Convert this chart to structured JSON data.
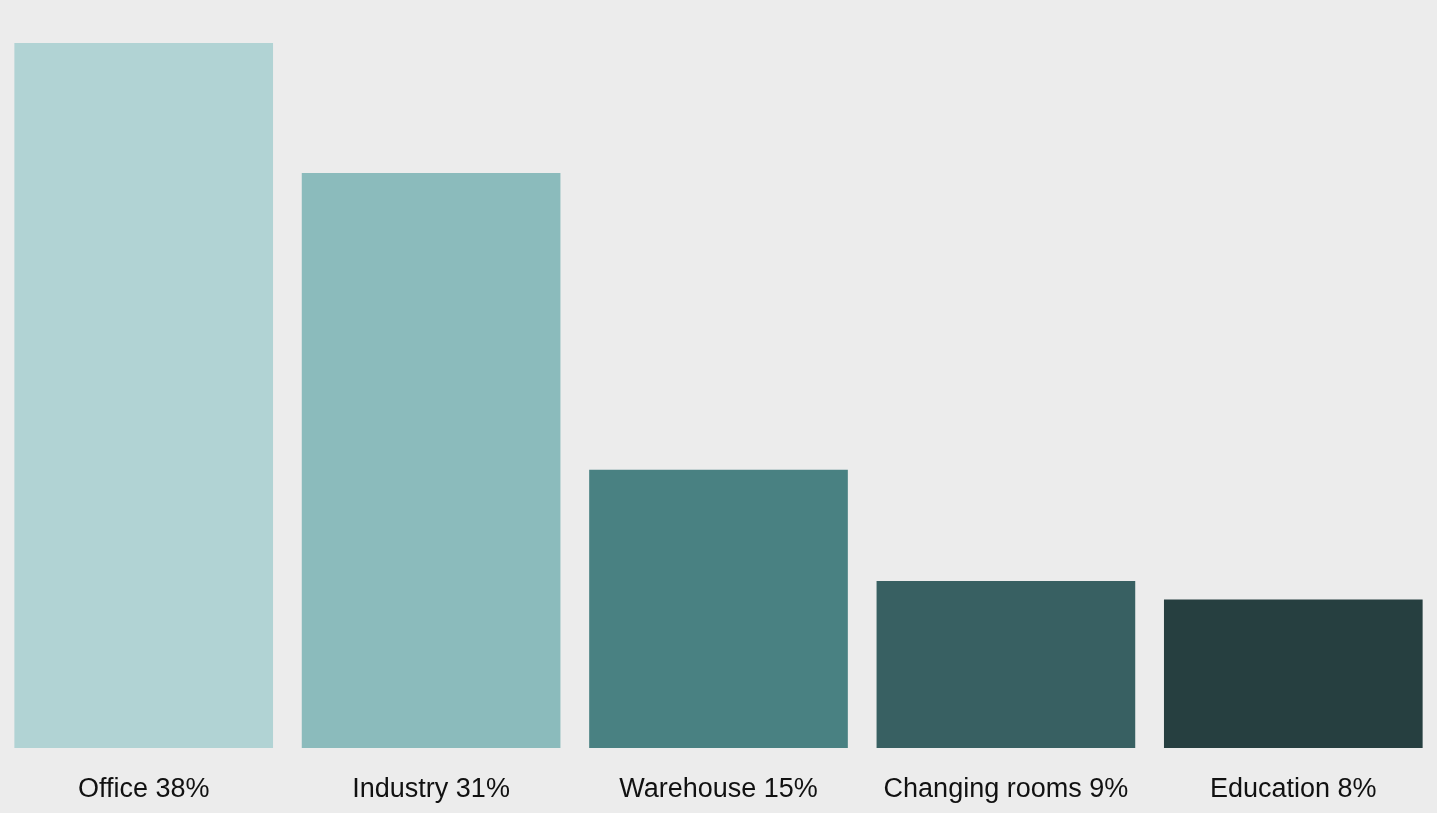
{
  "chart_data": {
    "type": "bar",
    "categories": [
      "Office",
      "Industry",
      "Warehouse",
      "Changing rooms",
      "Education"
    ],
    "values": [
      38,
      31,
      15,
      9,
      8
    ],
    "value_labels": [
      "38%",
      "31%",
      "15%",
      "9%",
      "8%"
    ],
    "colors": [
      "#b1d3d4",
      "#8bbbbc",
      "#498182",
      "#386062",
      "#263f40"
    ]
  }
}
